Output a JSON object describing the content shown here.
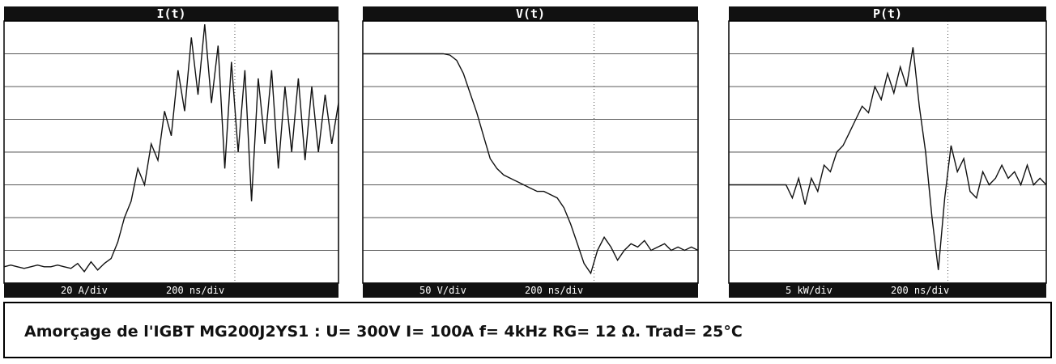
{
  "chart_data": [
    {
      "type": "line",
      "title": "I(t)",
      "vertical_scale": "20 A/div",
      "time_scale": "200 ns/div",
      "color": "#111111",
      "ylim": [
        -10,
        150
      ],
      "xlim": [
        0,
        2000
      ],
      "x": [
        0,
        40,
        80,
        120,
        160,
        200,
        240,
        280,
        320,
        360,
        400,
        440,
        480,
        520,
        560,
        600,
        640,
        680,
        720,
        760,
        800,
        840,
        880,
        920,
        960,
        1000,
        1040,
        1080,
        1120,
        1160,
        1200,
        1240,
        1280,
        1320,
        1360,
        1400,
        1440,
        1480,
        1520,
        1560,
        1600,
        1640,
        1680,
        1720,
        1760,
        1800,
        1840,
        1880,
        1920,
        1960,
        2000
      ],
      "values": [
        0,
        1,
        0,
        -1,
        0,
        1,
        0,
        0,
        1,
        0,
        -1,
        2,
        -3,
        3,
        -2,
        2,
        5,
        15,
        30,
        40,
        60,
        50,
        75,
        65,
        95,
        80,
        120,
        95,
        140,
        105,
        148,
        100,
        135,
        60,
        125,
        70,
        120,
        40,
        115,
        75,
        120,
        60,
        110,
        70,
        115,
        65,
        110,
        70,
        105,
        75,
        100
      ]
    },
    {
      "type": "line",
      "title": "V(t)",
      "vertical_scale": "50 V/div",
      "time_scale": "200 ns/div",
      "color": "#111111",
      "ylim": [
        -50,
        350
      ],
      "xlim": [
        0,
        2000
      ],
      "x": [
        0,
        40,
        80,
        120,
        160,
        200,
        240,
        280,
        320,
        360,
        400,
        440,
        480,
        520,
        560,
        600,
        640,
        680,
        720,
        760,
        800,
        840,
        880,
        920,
        960,
        1000,
        1040,
        1080,
        1120,
        1160,
        1200,
        1240,
        1280,
        1320,
        1360,
        1400,
        1440,
        1480,
        1520,
        1560,
        1600,
        1640,
        1680,
        1720,
        1760,
        1800,
        1840,
        1880,
        1920,
        1960,
        2000
      ],
      "values": [
        300,
        300,
        300,
        300,
        300,
        300,
        300,
        300,
        300,
        300,
        300,
        300,
        300,
        298,
        290,
        270,
        240,
        210,
        175,
        140,
        125,
        115,
        110,
        105,
        100,
        95,
        90,
        90,
        85,
        80,
        65,
        40,
        10,
        -20,
        -35,
        0,
        20,
        5,
        -15,
        0,
        10,
        5,
        15,
        0,
        5,
        10,
        0,
        5,
        0,
        5,
        0
      ]
    },
    {
      "type": "line",
      "title": "P(t)",
      "vertical_scale": "5 kW/div",
      "time_scale": "200 ns/div",
      "color": "#111111",
      "ylim": [
        -15,
        25
      ],
      "xlim": [
        0,
        2000
      ],
      "x": [
        0,
        40,
        80,
        120,
        160,
        200,
        240,
        280,
        320,
        360,
        400,
        440,
        480,
        520,
        560,
        600,
        640,
        680,
        720,
        760,
        800,
        840,
        880,
        920,
        960,
        1000,
        1040,
        1080,
        1120,
        1160,
        1200,
        1240,
        1280,
        1320,
        1360,
        1400,
        1440,
        1480,
        1520,
        1560,
        1600,
        1640,
        1680,
        1720,
        1760,
        1800,
        1840,
        1880,
        1920,
        1960,
        2000
      ],
      "values": [
        0,
        0,
        0,
        0,
        0,
        0,
        0,
        0,
        0,
        0,
        -2,
        1,
        -3,
        1,
        -1,
        3,
        2,
        5,
        6,
        8,
        10,
        12,
        11,
        15,
        13,
        17,
        14,
        18,
        15,
        21,
        12,
        5,
        -5,
        -13,
        -2,
        6,
        2,
        4,
        -1,
        -2,
        2,
        0,
        1,
        3,
        1,
        2,
        0,
        3,
        0,
        1,
        0
      ]
    }
  ],
  "caption": "Amorçage de l'IGBT MG200J2YS1 :   U= 300V   I= 100A   f= 4kHz   RG= 12 Ω.  Trad= 25°C"
}
